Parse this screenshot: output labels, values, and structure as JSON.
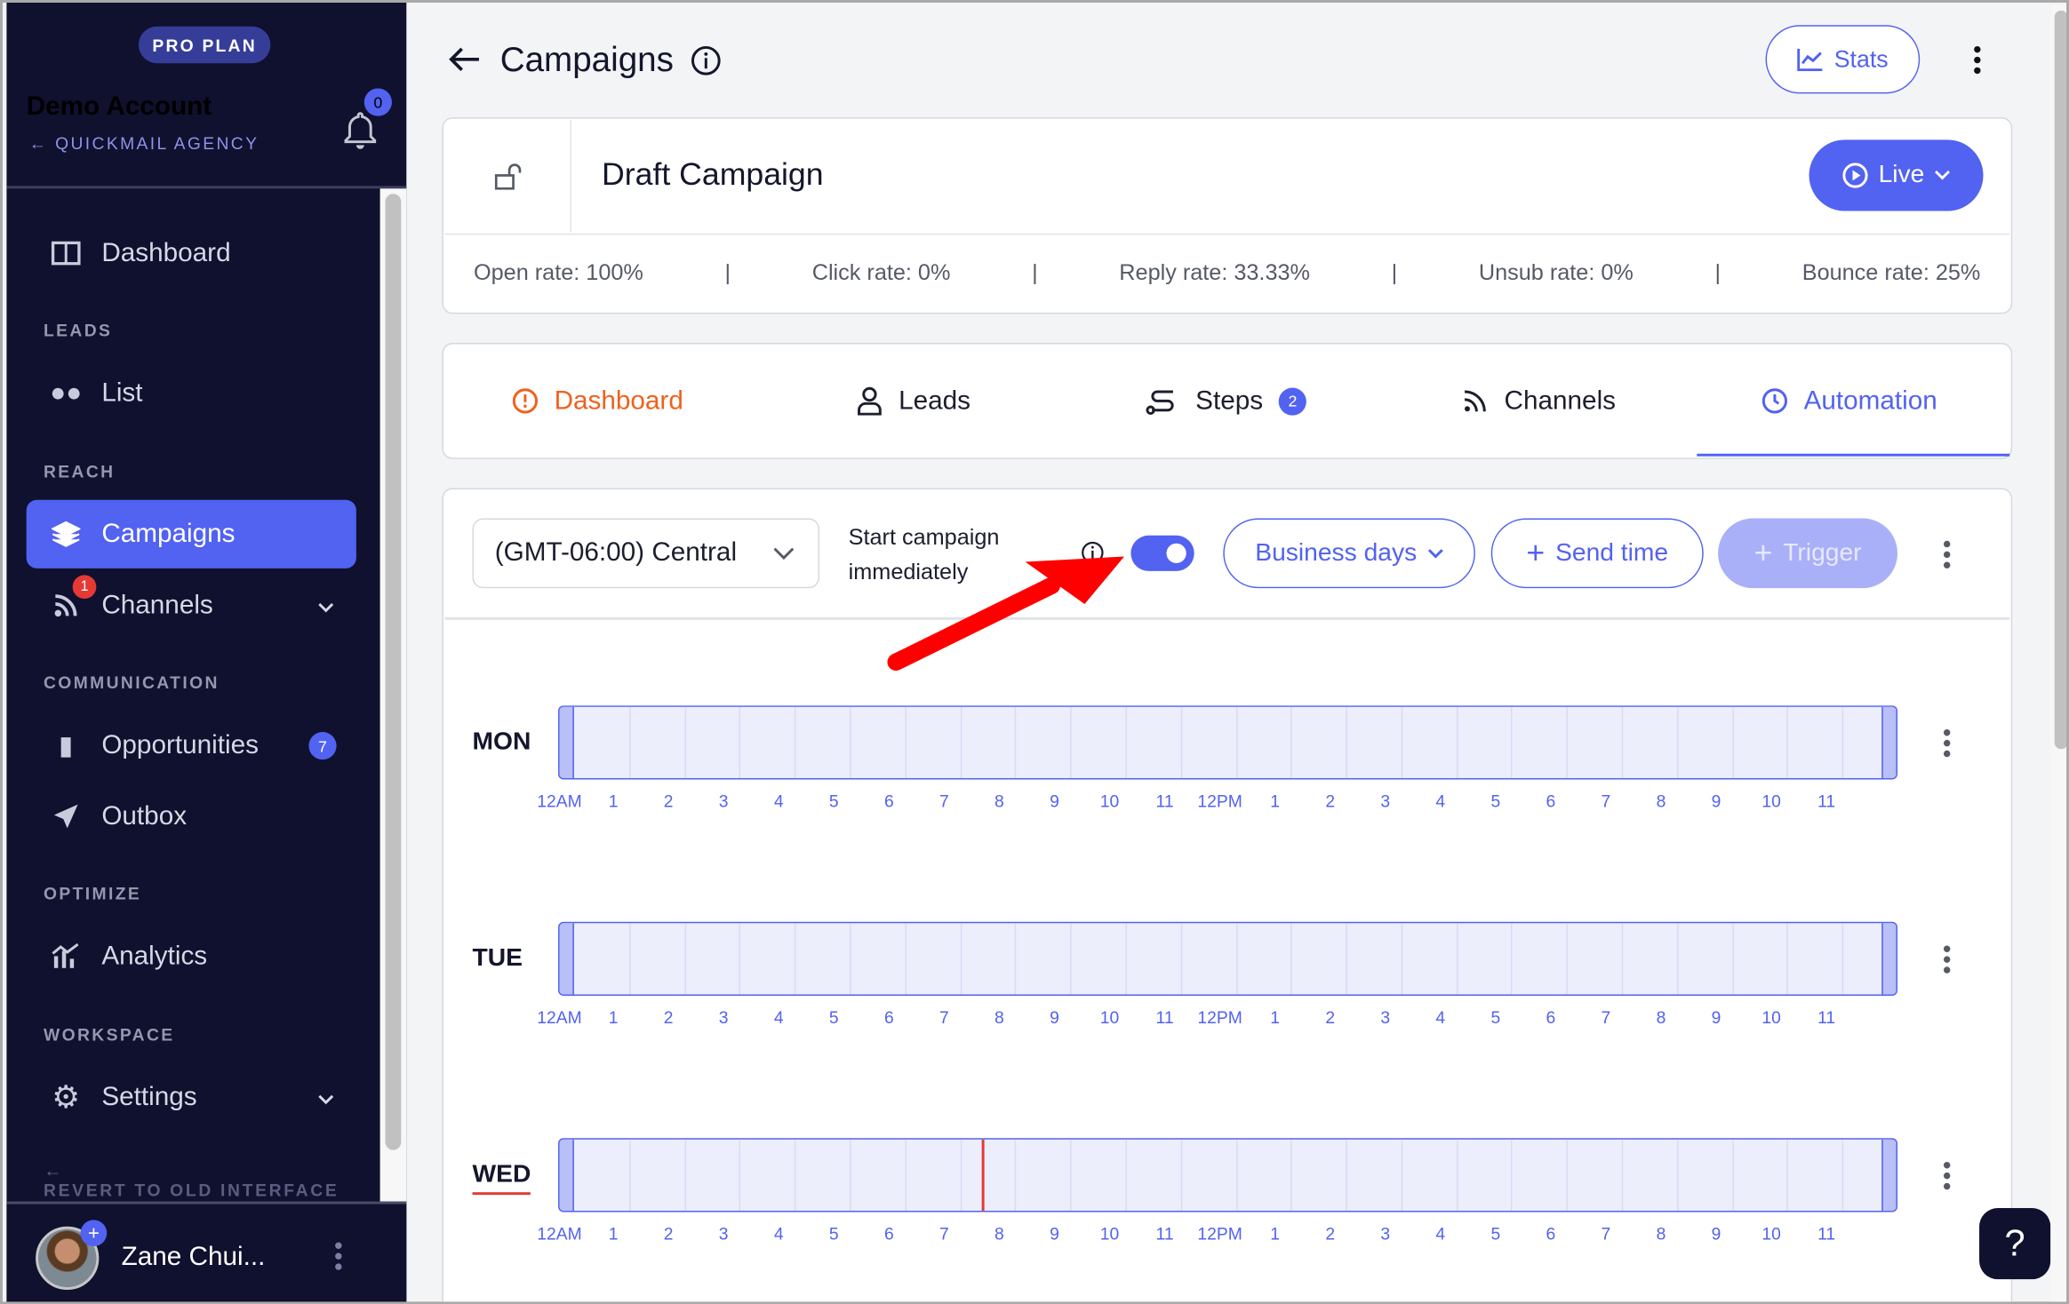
{
  "colors": {
    "accent": "#5262f1",
    "sidebar": "#0f112e",
    "orange": "#f0611e",
    "arrow": "#ff0000",
    "now_line": "#e53935"
  },
  "sidebar": {
    "plan_badge": "PRO PLAN",
    "account_name": "Demo Account",
    "agency": "QUICKMAIL AGENCY",
    "notifications": "0",
    "items": [
      {
        "label": "Dashboard",
        "icon": "columns-icon"
      },
      {
        "section": "LEADS"
      },
      {
        "label": "List",
        "icon": "users-icon"
      },
      {
        "section": "REACH"
      },
      {
        "label": "Campaigns",
        "icon": "layers-icon",
        "active": true
      },
      {
        "label": "Channels",
        "icon": "rss-icon",
        "badge": "1"
      },
      {
        "section": "COMMUNICATION"
      },
      {
        "label": "Opportunities",
        "icon": "chat-icon",
        "badge": "7"
      },
      {
        "label": "Outbox",
        "icon": "send-icon"
      },
      {
        "section": "OPTIMIZE"
      },
      {
        "label": "Analytics",
        "icon": "analytics-icon"
      },
      {
        "section": "WORKSPACE"
      },
      {
        "label": "Settings",
        "icon": "gear-icon"
      }
    ],
    "revert": "REVERT TO OLD INTERFACE",
    "user_name": "Zane Chui..."
  },
  "header": {
    "title": "Campaigns",
    "stats_label": "Stats"
  },
  "campaign": {
    "name": "Draft Campaign",
    "status_label": "Live",
    "stats": [
      "Open rate: 100%",
      "Click rate: 0%",
      "Reply rate: 33.33%",
      "Unsub rate: 0%",
      "Bounce rate: 25%"
    ]
  },
  "tabs": [
    {
      "label": "Dashboard"
    },
    {
      "label": "Leads"
    },
    {
      "label": "Steps",
      "badge": "2"
    },
    {
      "label": "Channels"
    },
    {
      "label": "Automation",
      "active": true
    }
  ],
  "automation": {
    "timezone": "(GMT-06:00) Central",
    "start_label_1": "Start campaign",
    "start_label_2": "immediately",
    "start_immediately": true,
    "business_days": "Business days",
    "send_time": "Send time",
    "trigger": "Trigger",
    "hours": [
      "12AM",
      "1",
      "2",
      "3",
      "4",
      "5",
      "6",
      "7",
      "8",
      "9",
      "10",
      "11",
      "12PM",
      "1",
      "2",
      "3",
      "4",
      "5",
      "6",
      "7",
      "8",
      "9",
      "10",
      "11"
    ],
    "days": [
      {
        "label": "MON"
      },
      {
        "label": "TUE"
      },
      {
        "label": "WED",
        "current": true,
        "now_hour": 7.4
      }
    ]
  }
}
